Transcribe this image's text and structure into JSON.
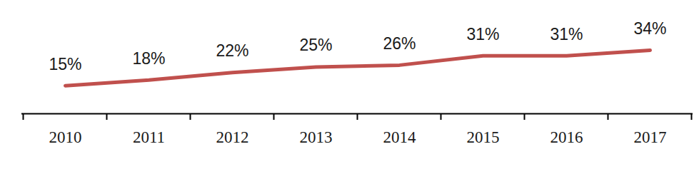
{
  "chart_data": {
    "type": "line",
    "categories": [
      "2010",
      "2011",
      "2012",
      "2013",
      "2014",
      "2015",
      "2016",
      "2017"
    ],
    "values": [
      15,
      18,
      22,
      25,
      26,
      31,
      31,
      34
    ],
    "value_labels": [
      "15%",
      "18%",
      "22%",
      "25%",
      "26%",
      "31%",
      "31%",
      "34%"
    ],
    "color": "#c0504d",
    "ylim": [
      0,
      50
    ],
    "data_labels": true,
    "tick_labels": "x"
  }
}
